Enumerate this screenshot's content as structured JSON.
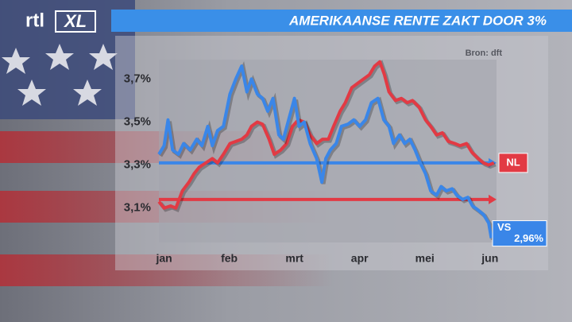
{
  "logo": {
    "left": "rtl",
    "right": "XL"
  },
  "chart_data": {
    "type": "line",
    "title": "AMERIKAANSE RENTE ZAKT DOOR 3%",
    "source": "Bron: dft",
    "xlim": [
      -0.08,
      5.1
    ],
    "xticks": [
      {
        "value": 0,
        "label": "jan"
      },
      {
        "value": 1,
        "label": "feb"
      },
      {
        "value": 2,
        "label": "mrt"
      },
      {
        "value": 3,
        "label": "apr"
      },
      {
        "value": 4,
        "label": "mei"
      },
      {
        "value": 5,
        "label": "jun"
      }
    ],
    "ylim": [
      2.94,
      3.79
    ],
    "yticks": [
      {
        "value": 3.1,
        "label": "3,1%"
      },
      {
        "value": 3.3,
        "label": "3,3%"
      },
      {
        "value": 3.5,
        "label": "3,5%"
      },
      {
        "value": 3.7,
        "label": "3,7%"
      }
    ],
    "reference_lines": [
      {
        "value": 3.31,
        "color": "#3a86e8"
      },
      {
        "value": 3.14,
        "color": "#e23a44"
      }
    ],
    "series": [
      {
        "name": "NL",
        "color": "#e23a44",
        "x": [
          -0.08,
          0,
          0.1,
          0.18,
          0.28,
          0.38,
          0.46,
          0.54,
          0.64,
          0.74,
          0.82,
          0.91,
          1.01,
          1.1,
          1.19,
          1.27,
          1.34,
          1.43,
          1.51,
          1.61,
          1.69,
          1.79,
          1.88,
          1.97,
          2.06,
          2.15,
          2.24,
          2.34,
          2.43,
          2.52,
          2.6,
          2.7,
          2.78,
          2.88,
          2.97,
          3.06,
          3.15,
          3.23,
          3.31,
          3.38,
          3.45,
          3.55,
          3.64,
          3.73,
          3.81,
          3.91,
          4.01,
          4.09,
          4.18,
          4.27,
          4.36,
          4.46,
          4.54,
          4.64,
          4.72,
          4.82,
          4.9,
          4.98,
          5.06
        ],
        "values": [
          3.13,
          3.1,
          3.11,
          3.1,
          3.18,
          3.22,
          3.26,
          3.29,
          3.31,
          3.33,
          3.31,
          3.35,
          3.4,
          3.41,
          3.42,
          3.44,
          3.48,
          3.5,
          3.49,
          3.42,
          3.35,
          3.37,
          3.4,
          3.48,
          3.51,
          3.5,
          3.44,
          3.4,
          3.42,
          3.42,
          3.48,
          3.55,
          3.59,
          3.66,
          3.68,
          3.7,
          3.72,
          3.76,
          3.78,
          3.72,
          3.64,
          3.6,
          3.61,
          3.59,
          3.6,
          3.57,
          3.51,
          3.48,
          3.44,
          3.45,
          3.41,
          3.4,
          3.39,
          3.4,
          3.36,
          3.33,
          3.31,
          3.3,
          3.31
        ]
      },
      {
        "name": "VS",
        "color": "#3a86e8",
        "x": [
          -0.08,
          0,
          0.06,
          0.13,
          0.22,
          0.3,
          0.4,
          0.5,
          0.58,
          0.67,
          0.74,
          0.82,
          0.91,
          1.01,
          1.1,
          1.19,
          1.27,
          1.34,
          1.43,
          1.51,
          1.59,
          1.67,
          1.76,
          1.83,
          1.91,
          2,
          2.07,
          2.15,
          2.24,
          2.34,
          2.42,
          2.48,
          2.55,
          2.64,
          2.72,
          2.82,
          2.91,
          3,
          3.09,
          3.18,
          3.28,
          3.37,
          3.45,
          3.52,
          3.61,
          3.69,
          3.77,
          3.85,
          3.93,
          4.01,
          4.09,
          4.18,
          4.25,
          4.33,
          4.42,
          4.49,
          4.58,
          4.66,
          4.73,
          4.82,
          4.9,
          4.98,
          5.02
        ],
        "values": [
          3.35,
          3.39,
          3.51,
          3.37,
          3.35,
          3.4,
          3.37,
          3.42,
          3.39,
          3.48,
          3.39,
          3.46,
          3.48,
          3.63,
          3.7,
          3.76,
          3.64,
          3.7,
          3.63,
          3.61,
          3.55,
          3.61,
          3.44,
          3.42,
          3.51,
          3.61,
          3.48,
          3.5,
          3.4,
          3.33,
          3.22,
          3.33,
          3.37,
          3.4,
          3.48,
          3.49,
          3.51,
          3.48,
          3.51,
          3.59,
          3.61,
          3.51,
          3.48,
          3.4,
          3.44,
          3.4,
          3.42,
          3.37,
          3.31,
          3.26,
          3.18,
          3.16,
          3.2,
          3.18,
          3.19,
          3.16,
          3.14,
          3.15,
          3.11,
          3.09,
          3.07,
          3.03,
          2.96
        ],
        "value_labels": [
          null,
          null,
          null,
          null,
          null,
          null,
          null,
          null,
          null,
          null,
          null,
          null,
          null,
          null,
          null,
          null,
          null,
          null,
          null,
          null,
          null,
          null,
          null,
          null,
          null,
          null,
          null,
          null,
          null,
          null,
          null,
          null,
          null,
          null,
          null,
          null,
          null,
          null,
          null,
          null,
          null,
          null,
          null,
          null,
          null,
          null,
          null,
          null,
          null,
          null,
          null,
          null,
          null,
          null,
          null,
          null,
          null,
          null,
          null,
          null,
          null,
          null,
          "2,96%"
        ]
      }
    ]
  }
}
